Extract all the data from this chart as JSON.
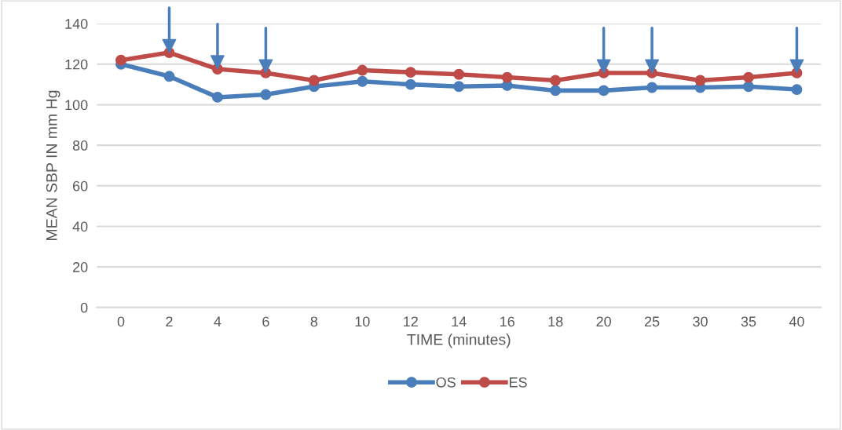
{
  "chart_data": {
    "type": "line",
    "xlabel": "TIME (minutes)",
    "ylabel": "MEAN SBP IN mm Hg",
    "categories": [
      "0",
      "2",
      "4",
      "6",
      "8",
      "10",
      "12",
      "14",
      "16",
      "18",
      "20",
      "25",
      "30",
      "35",
      "40"
    ],
    "series": [
      {
        "name": "OS",
        "color": "#4a7ebb",
        "values": [
          120,
          114,
          103.7,
          105,
          109,
          111.5,
          110,
          109,
          109.5,
          107,
          107,
          108.5,
          108.5,
          109,
          107.5
        ]
      },
      {
        "name": "ES",
        "color": "#be4b48",
        "values": [
          122,
          125.7,
          117.6,
          115.7,
          112,
          117,
          116,
          115,
          113.5,
          112,
          115.7,
          115.7,
          112,
          113.5,
          115.7
        ]
      },
      {
        "type": "scatter",
        "marker": "triangle",
        "color": "#4a7ebb",
        "x": [
          "2",
          "4",
          "6",
          "20",
          "25",
          "40"
        ],
        "values": [
          129,
          121,
          119,
          119,
          119,
          119
        ]
      }
    ],
    "ylim": [
      0,
      140
    ],
    "yticks": [
      0,
      20,
      40,
      60,
      80,
      100,
      120,
      140
    ],
    "grid": "y",
    "legend": "bottom",
    "marker": "circle",
    "line_style": "solid"
  }
}
